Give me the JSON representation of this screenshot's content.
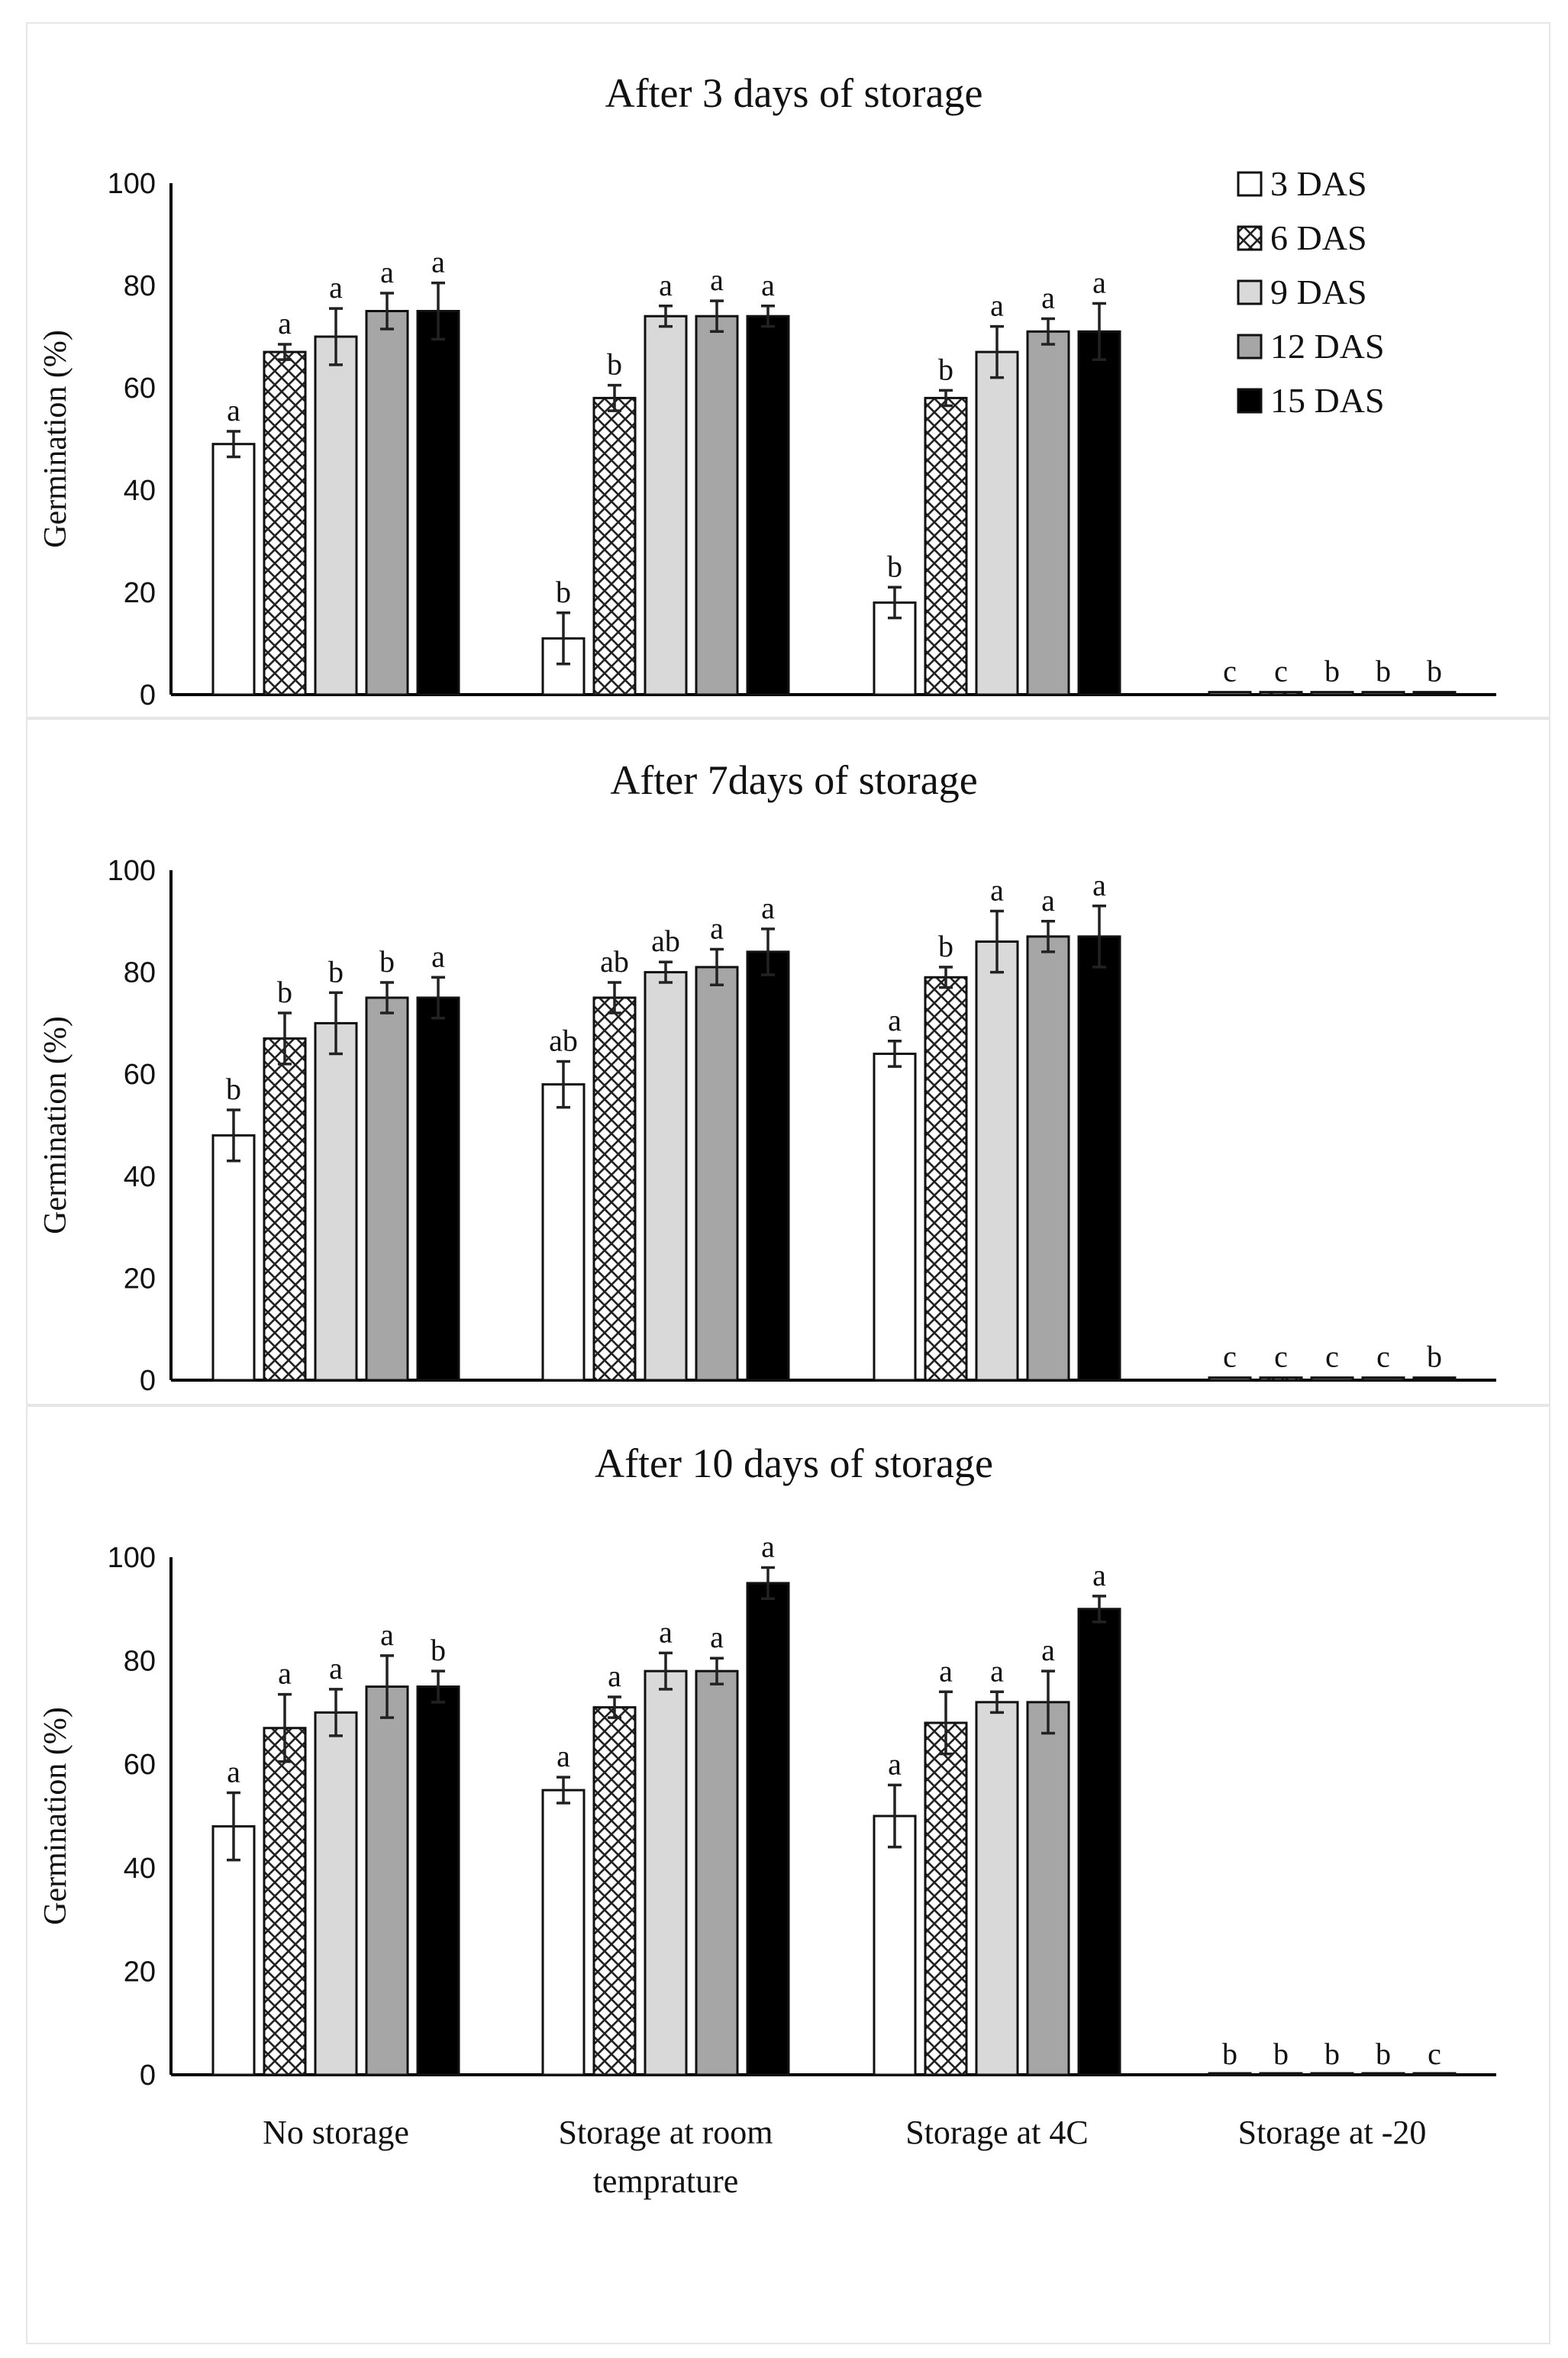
{
  "colors": {
    "3 DAS": "#ffffff",
    "6 DAS": "pattern-crosshatch",
    "9 DAS": "#d9d9d9",
    "12 DAS": "#a6a6a6",
    "15 DAS": "#000000"
  },
  "legend": [
    "3 DAS",
    "6 DAS",
    "9 DAS",
    "12 DAS",
    "15 DAS"
  ],
  "categories_display": [
    [
      "No storage"
    ],
    [
      "Storage at room",
      "temprature"
    ],
    [
      "Storage at 4C"
    ],
    [
      "Storage at -20"
    ]
  ],
  "chart_data": [
    {
      "type": "bar",
      "title": "After 3 days of storage",
      "ylabel": "Germination (%)",
      "xlabel": "",
      "ylim": [
        0,
        100
      ],
      "yticks": [
        0,
        20,
        40,
        60,
        80,
        100
      ],
      "categories": [
        "No storage",
        "Storage at room temprature",
        "Storage at 4C",
        "Storage at -20"
      ],
      "series": [
        {
          "name": "3 DAS",
          "values": [
            49,
            11,
            18,
            0.5
          ],
          "errors": [
            2.5,
            5,
            3,
            0
          ],
          "letters": [
            "a",
            "b",
            "b",
            "c"
          ]
        },
        {
          "name": "6 DAS",
          "values": [
            67,
            58,
            58,
            0.5
          ],
          "errors": [
            1.5,
            2.5,
            1.5,
            0
          ],
          "letters": [
            "a",
            "b",
            "b",
            "c"
          ]
        },
        {
          "name": "9 DAS",
          "values": [
            70,
            74,
            67,
            0.5
          ],
          "errors": [
            5.5,
            2,
            5,
            0
          ],
          "letters": [
            "a",
            "a",
            "a",
            "b"
          ]
        },
        {
          "name": "12 DAS",
          "values": [
            75,
            74,
            71,
            0.5
          ],
          "errors": [
            3.5,
            3,
            2.5,
            0
          ],
          "letters": [
            "a",
            "a",
            "a",
            "b"
          ]
        },
        {
          "name": "15 DAS",
          "values": [
            75,
            74,
            71,
            0.5
          ],
          "errors": [
            5.5,
            2,
            5.5,
            0
          ],
          "letters": [
            "a",
            "a",
            "a",
            "b"
          ]
        }
      ]
    },
    {
      "type": "bar",
      "title": "After 7days of storage",
      "ylabel": "Germination (%)",
      "xlabel": "",
      "ylim": [
        0,
        100
      ],
      "yticks": [
        0,
        20,
        40,
        60,
        80,
        100
      ],
      "categories": [
        "No storage",
        "Storage at room temprature",
        "Storage at 4C",
        "Storage at -20"
      ],
      "series": [
        {
          "name": "3 DAS",
          "values": [
            48,
            58,
            64,
            0.5
          ],
          "errors": [
            5,
            4.5,
            2.5,
            0
          ],
          "letters": [
            "b",
            "ab",
            "a",
            "c"
          ]
        },
        {
          "name": "6 DAS",
          "values": [
            67,
            75,
            79,
            0.5
          ],
          "errors": [
            5,
            3,
            2,
            0
          ],
          "letters": [
            "b",
            "ab",
            "b",
            "c"
          ]
        },
        {
          "name": "9 DAS",
          "values": [
            70,
            80,
            86,
            0.5
          ],
          "errors": [
            6,
            2,
            6,
            0
          ],
          "letters": [
            "b",
            "ab",
            "a",
            "c"
          ]
        },
        {
          "name": "12 DAS",
          "values": [
            75,
            81,
            87,
            0.5
          ],
          "errors": [
            3,
            3.5,
            3,
            0
          ],
          "letters": [
            "b",
            "a",
            "a",
            "c"
          ]
        },
        {
          "name": "15 DAS",
          "values": [
            75,
            84,
            87,
            0.5
          ],
          "errors": [
            4,
            4.5,
            6,
            0
          ],
          "letters": [
            "a",
            "a",
            "a",
            "b"
          ]
        }
      ]
    },
    {
      "type": "bar",
      "title": "After 10 days of storage",
      "ylabel": "Germination (%)",
      "xlabel": "",
      "ylim": [
        0,
        100
      ],
      "yticks": [
        0,
        20,
        40,
        60,
        80,
        100
      ],
      "categories": [
        "No storage",
        "Storage at room temprature",
        "Storage at 4C",
        "Storage at -20"
      ],
      "series": [
        {
          "name": "3 DAS",
          "values": [
            48,
            55,
            50,
            0
          ],
          "errors": [
            6.5,
            2.5,
            6,
            0
          ],
          "letters": [
            "a",
            "a",
            "a",
            "b"
          ]
        },
        {
          "name": "6 DAS",
          "values": [
            67,
            71,
            68,
            0
          ],
          "errors": [
            6.5,
            2,
            6,
            0
          ],
          "letters": [
            "a",
            "a",
            "a",
            "b"
          ]
        },
        {
          "name": "9 DAS",
          "values": [
            70,
            78,
            72,
            0
          ],
          "errors": [
            4.5,
            3.5,
            2,
            0
          ],
          "letters": [
            "a",
            "a",
            "a",
            "b"
          ]
        },
        {
          "name": "12 DAS",
          "values": [
            75,
            78,
            72,
            0
          ],
          "errors": [
            6,
            2.5,
            6,
            0
          ],
          "letters": [
            "a",
            "a",
            "a",
            "b"
          ]
        },
        {
          "name": "15 DAS",
          "values": [
            75,
            95,
            90,
            0
          ],
          "errors": [
            3,
            3,
            2.5,
            0
          ],
          "letters": [
            "b",
            "a",
            "a",
            "c"
          ]
        }
      ]
    }
  ]
}
